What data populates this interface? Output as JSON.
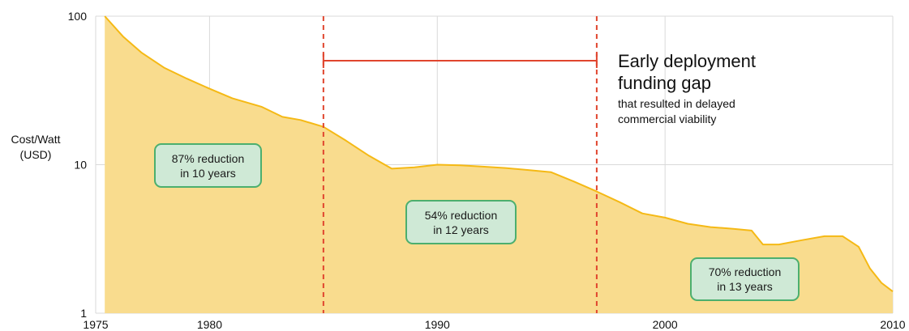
{
  "chart_data": {
    "type": "area",
    "title": "",
    "xlabel": "",
    "ylabel": "Cost/Watt (USD)",
    "ylabel_lines": [
      "Cost/Watt",
      "(USD)"
    ],
    "y_scale": "log",
    "xlim": [
      1975,
      2010
    ],
    "ylim": [
      1,
      100
    ],
    "x_ticks": [
      1975,
      1980,
      1990,
      2000,
      2010
    ],
    "y_ticks": [
      1,
      10,
      100
    ],
    "grid": true,
    "series": [
      {
        "color": "#f5b915",
        "fill": "#f9dc8e",
        "x": [
          1975.4,
          1976.2,
          1977.0,
          1978.0,
          1979.0,
          1980.0,
          1981.0,
          1982.3,
          1983.2,
          1984.0,
          1985.0,
          1986.0,
          1987.0,
          1988.0,
          1989.0,
          1990.0,
          1991.0,
          1992.0,
          1993.0,
          1994.0,
          1995.0,
          1996.0,
          1997.0,
          1998.0,
          1999.0,
          2000.0,
          2001.0,
          2002.0,
          2003.0,
          2003.8,
          2004.3,
          2005.0,
          2006.0,
          2007.0,
          2007.8,
          2008.5,
          2009.0,
          2009.5,
          2010.0
        ],
        "y": [
          100,
          73,
          57,
          45,
          38,
          32.5,
          28,
          24.5,
          21,
          20,
          18,
          14.5,
          11.5,
          9.4,
          9.6,
          10,
          9.9,
          9.7,
          9.5,
          9.2,
          8.9,
          7.7,
          6.6,
          5.6,
          4.7,
          4.4,
          4.0,
          3.8,
          3.7,
          3.6,
          2.9,
          2.9,
          3.1,
          3.3,
          3.3,
          2.8,
          2.0,
          1.6,
          1.4
        ]
      }
    ],
    "reference_lines": [
      1985,
      1997
    ],
    "annotations": {
      "gap": {
        "from": 1985,
        "to": 1997,
        "y": 50,
        "title_lines": [
          "Early deployment",
          "funding gap"
        ],
        "sub_lines": [
          "that resulted in delayed",
          "commercial viability"
        ]
      },
      "badges": [
        {
          "lines": [
            "87% reduction",
            "in 10 years"
          ]
        },
        {
          "lines": [
            "54% reduction",
            "in 12 years"
          ]
        },
        {
          "lines": [
            "70% reduction",
            "in 13 years"
          ]
        }
      ]
    }
  }
}
